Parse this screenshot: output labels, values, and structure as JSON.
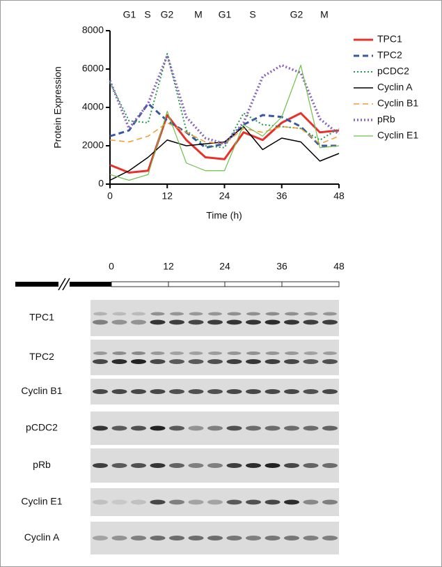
{
  "chart_data": {
    "type": "line",
    "phase_labels": [
      "G1",
      "S",
      "G2",
      "M",
      "G1",
      "S",
      "G2",
      "M"
    ],
    "xlabel": "Time (h)",
    "ylabel": "Protein Expression",
    "x": [
      0,
      4,
      8,
      12,
      16,
      20,
      24,
      28,
      32,
      36,
      40,
      44,
      48
    ],
    "xlim": [
      0,
      48
    ],
    "ylim": [
      0,
      8000
    ],
    "xticks": [
      0,
      12,
      24,
      36,
      48
    ],
    "yticks": [
      0,
      2000,
      4000,
      6000,
      8000
    ],
    "series": [
      {
        "name": "TPC1",
        "color": "#e8312a",
        "dash": "solid",
        "width": 3,
        "values": [
          1000,
          600,
          700,
          3600,
          2300,
          1400,
          1300,
          2700,
          2300,
          3200,
          3700,
          2700,
          2800
        ]
      },
      {
        "name": "TPC2",
        "color": "#3a56a5",
        "dash": "dashed",
        "width": 3,
        "values": [
          2500,
          2800,
          4200,
          3300,
          2700,
          1900,
          2100,
          3100,
          3600,
          3500,
          3000,
          2000,
          2000
        ]
      },
      {
        "name": "pCDC2",
        "color": "#1f9a48",
        "dash": "dotted",
        "width": 2,
        "values": [
          5300,
          3300,
          3200,
          6800,
          2800,
          2000,
          1900,
          3700,
          3100,
          3000,
          2900,
          2300,
          2900
        ]
      },
      {
        "name": "Cyclin A",
        "color": "#000000",
        "dash": "solid",
        "width": 1.5,
        "values": [
          200,
          700,
          1400,
          2300,
          2000,
          2100,
          2200,
          3000,
          1800,
          2400,
          2200,
          1200,
          1600
        ]
      },
      {
        "name": "Cyclin B1",
        "color": "#f39a2b",
        "dash": "dashed",
        "width": 1.5,
        "values": [
          2300,
          2200,
          2500,
          3200,
          2700,
          2200,
          2100,
          2900,
          2700,
          3000,
          2900,
          2100,
          2500
        ]
      },
      {
        "name": "pRb",
        "color": "#8a63bd",
        "dash": "dotted",
        "width": 3.5,
        "values": [
          5400,
          2900,
          4200,
          6700,
          3500,
          2400,
          2100,
          3200,
          5600,
          6200,
          5800,
          3400,
          2600
        ]
      },
      {
        "name": "Cyclin E1",
        "color": "#6cc04a",
        "dash": "solid",
        "width": 1.2,
        "values": [
          500,
          200,
          500,
          3800,
          1100,
          700,
          700,
          3100,
          2500,
          3500,
          6200,
          1900,
          2000
        ]
      }
    ]
  },
  "blot": {
    "time_labels": [
      "0",
      "12",
      "24",
      "36",
      "48"
    ],
    "rows": [
      "TPC1",
      "TPC2",
      "Cyclin B1",
      "pCDC2",
      "pRb",
      "Cyclin E1",
      "Cyclin A"
    ]
  }
}
